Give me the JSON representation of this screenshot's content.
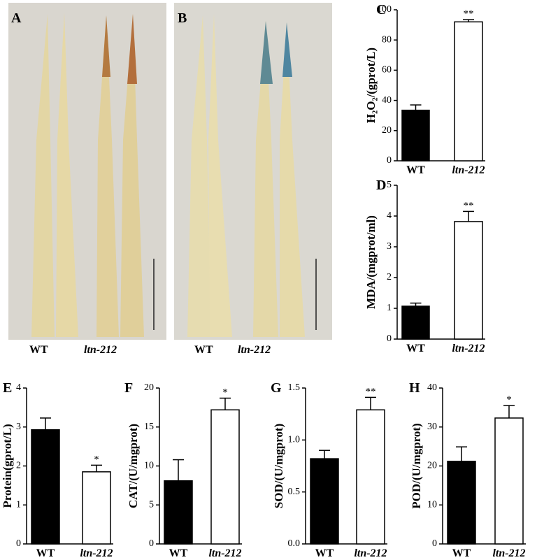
{
  "photos": [
    {
      "label": "A",
      "captions": [
        "WT",
        "ltn-212"
      ]
    },
    {
      "label": "B",
      "captions": [
        "WT",
        "ltn-212"
      ]
    }
  ],
  "chart_data": [
    {
      "type": "bar",
      "panel": "C",
      "ylabel": "H₂O₂/(gprot/L)",
      "categories": [
        "WT",
        "ltn-212"
      ],
      "values": [
        33.5,
        92
      ],
      "errors": [
        3.5,
        1.5
      ],
      "annotation": "**",
      "colors": [
        "#000000",
        "#ffffff"
      ],
      "ylim": [
        0,
        100
      ],
      "yticks": [
        0,
        20,
        40,
        60,
        80,
        100
      ]
    },
    {
      "type": "bar",
      "panel": "D",
      "ylabel": "MDA/(mgprot/ml)",
      "categories": [
        "WT",
        "ltn-212"
      ],
      "values": [
        1.07,
        3.82
      ],
      "errors": [
        0.1,
        0.33
      ],
      "annotation": "**",
      "colors": [
        "#000000",
        "#ffffff"
      ],
      "ylim": [
        0,
        5
      ],
      "yticks": [
        0,
        1,
        2,
        3,
        4,
        5
      ]
    },
    {
      "type": "bar",
      "panel": "E",
      "ylabel": "Protein(gprot/L)",
      "categories": [
        "WT",
        "ltn-212"
      ],
      "values": [
        2.93,
        1.85
      ],
      "errors": [
        0.3,
        0.17
      ],
      "annotation": "*",
      "colors": [
        "#000000",
        "#ffffff"
      ],
      "ylim": [
        0,
        4
      ],
      "yticks": [
        0,
        1,
        2,
        3,
        4
      ]
    },
    {
      "type": "bar",
      "panel": "F",
      "ylabel": "CAT/(U/mgprot)",
      "categories": [
        "WT",
        "ltn-212"
      ],
      "values": [
        8.1,
        17.2
      ],
      "errors": [
        2.7,
        1.5
      ],
      "annotation": "*",
      "colors": [
        "#000000",
        "#ffffff"
      ],
      "ylim": [
        0,
        20
      ],
      "yticks": [
        0,
        5,
        10,
        15,
        20
      ]
    },
    {
      "type": "bar",
      "panel": "G",
      "ylabel": "SOD/(U/mgprot)",
      "categories": [
        "WT",
        "ltn-212"
      ],
      "values": [
        0.82,
        1.29
      ],
      "errors": [
        0.08,
        0.12
      ],
      "annotation": "**",
      "colors": [
        "#000000",
        "#ffffff"
      ],
      "ylim": [
        0,
        1.5
      ],
      "yticks": [
        {
          "value": 0,
          "label": "0.0"
        },
        0.5,
        {
          "value": 1,
          "label": "1.0"
        },
        1.5
      ]
    },
    {
      "type": "bar",
      "panel": "H",
      "ylabel": "POD/(U/mgprot)",
      "categories": [
        "WT",
        "ltn-212"
      ],
      "values": [
        21.2,
        32.3
      ],
      "errors": [
        3.7,
        3.2
      ],
      "annotation": "*",
      "colors": [
        "#000000",
        "#ffffff"
      ],
      "ylim": [
        0,
        40
      ],
      "yticks": [
        0,
        10,
        20,
        30,
        40
      ]
    }
  ]
}
